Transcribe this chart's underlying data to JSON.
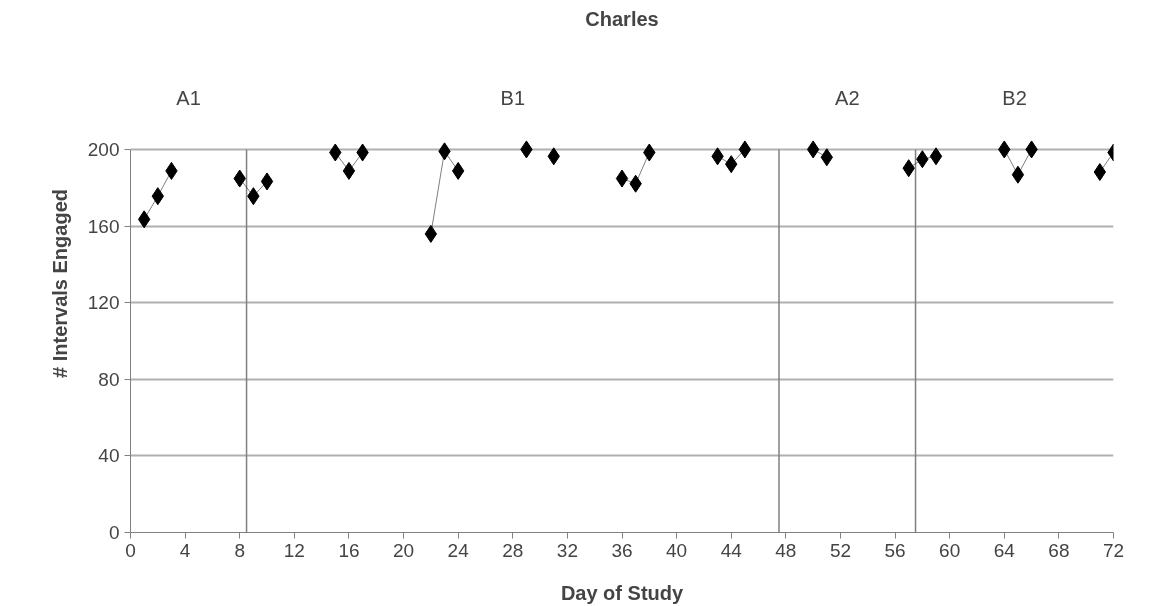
{
  "chart_data": {
    "type": "line",
    "title": "Charles",
    "xlabel": "Day of Study",
    "ylabel": "# Intervals Engaged",
    "annotations": [
      "A1",
      "B1",
      "A2",
      "B2"
    ],
    "series": [
      {
        "color": "#000000",
        "x": [
          1,
          2,
          3,
          4,
          8,
          9,
          10,
          11,
          15,
          16,
          17,
          18,
          22,
          23,
          24,
          25,
          29,
          30,
          31,
          32,
          36,
          37,
          38,
          39,
          43,
          44,
          45,
          46,
          50,
          51,
          52,
          57,
          58,
          59,
          60,
          64,
          65,
          66,
          67,
          71,
          72
        ],
        "values": [
          163.5,
          175.6,
          188.8,
          null,
          184.8,
          175.6,
          183.3,
          null,
          198.4,
          188.8,
          198.4,
          null,
          155.9,
          199,
          188.8,
          null,
          200,
          null,
          196.4,
          null,
          184.8,
          182.1,
          198.4,
          null,
          196.4,
          192.3,
          200,
          null,
          200,
          195.9,
          null,
          190.2,
          194.9,
          196.4,
          null,
          200,
          186.8,
          200,
          null,
          188.2,
          198.4
        ]
      }
    ],
    "ref_lines": [
      {
        "axis": "x",
        "value": 8.5,
        "color": "#808080"
      },
      {
        "axis": "x",
        "value": 47.5,
        "color": "#808080"
      },
      {
        "axis": "x",
        "value": 57.5,
        "color": "#808080"
      }
    ],
    "xlim": [
      0,
      72
    ],
    "xticks": [
      0,
      4,
      8,
      12,
      16,
      20,
      24,
      28,
      32,
      36,
      40,
      44,
      48,
      52,
      56,
      60,
      64,
      68,
      72
    ],
    "ylim": [
      0,
      200
    ],
    "yticks": [
      0,
      40,
      80,
      120,
      160,
      200
    ],
    "grid": "y",
    "marker": "diamond",
    "line_style": "solid"
  }
}
